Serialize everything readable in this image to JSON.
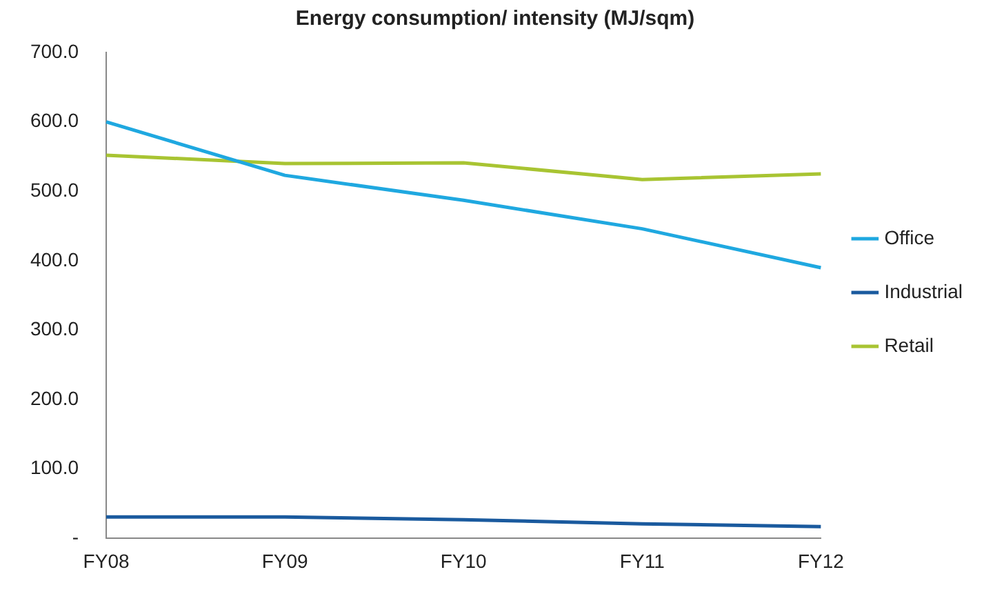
{
  "chart_data": {
    "type": "line",
    "title": "Energy consumption/ intensity (MJ/sqm)",
    "categories": [
      "FY08",
      "FY09",
      "FY10",
      "FY11",
      "FY12"
    ],
    "series": [
      {
        "name": "Office",
        "color": "#1fa8e0",
        "values": [
          600,
          523,
          487,
          446,
          390
        ]
      },
      {
        "name": "Industrial",
        "color": "#1a5a9e",
        "values": [
          31,
          31,
          27,
          21,
          17
        ]
      },
      {
        "name": "Retail",
        "color": "#a8c432",
        "values": [
          552,
          540,
          541,
          517,
          525
        ]
      }
    ],
    "ylim": [
      0,
      700
    ],
    "yticks": [
      {
        "value": 0,
        "label": "-"
      },
      {
        "value": 100,
        "label": "100.0"
      },
      {
        "value": 200,
        "label": "200.0"
      },
      {
        "value": 300,
        "label": "300.0"
      },
      {
        "value": 400,
        "label": "400.0"
      },
      {
        "value": 500,
        "label": "500.0"
      },
      {
        "value": 600,
        "label": "600.0"
      },
      {
        "value": 700,
        "label": "700.0"
      }
    ],
    "grid": false,
    "legend": "right",
    "marker": "none",
    "line_style": "solid"
  }
}
